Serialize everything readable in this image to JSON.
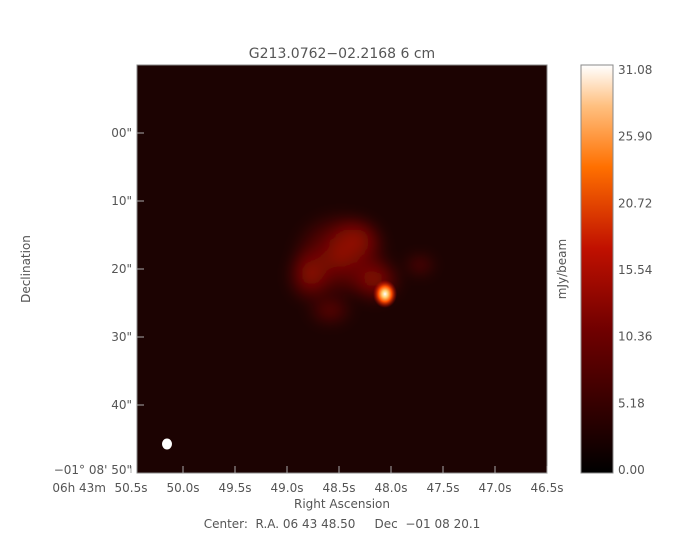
{
  "chart_data": {
    "type": "heatmap",
    "title": "G213.0762−02.2168 6 cm",
    "xlabel": "Right Ascension",
    "ylabel": "Declination",
    "x_ticks": [
      "50.5",
      "50.0",
      "49.5",
      "49.0",
      "48.5",
      "48.0",
      "47.5",
      "47.0",
      "46.5"
    ],
    "x_tick_prefix": "06h 43m",
    "y_ticks": [
      "00\"",
      "10\"",
      "20\"",
      "30\"",
      "40\""
    ],
    "y_tick_last": "−01° 08' 50\"",
    "colorbar": {
      "label": "mJy/beam",
      "ticks": [
        "31.08",
        "25.90",
        "20.72",
        "15.54",
        "10.36",
        "5.18",
        "0.00"
      ],
      "range": [
        0.0,
        31.08
      ],
      "colormap": "red-temperature"
    },
    "peak": {
      "ra_s": 48.05,
      "dec_arcsec": 24,
      "value": 31.08
    },
    "footer": "Center:  R.A. 06 43 48.50     Dec  −01 08 20.1"
  }
}
